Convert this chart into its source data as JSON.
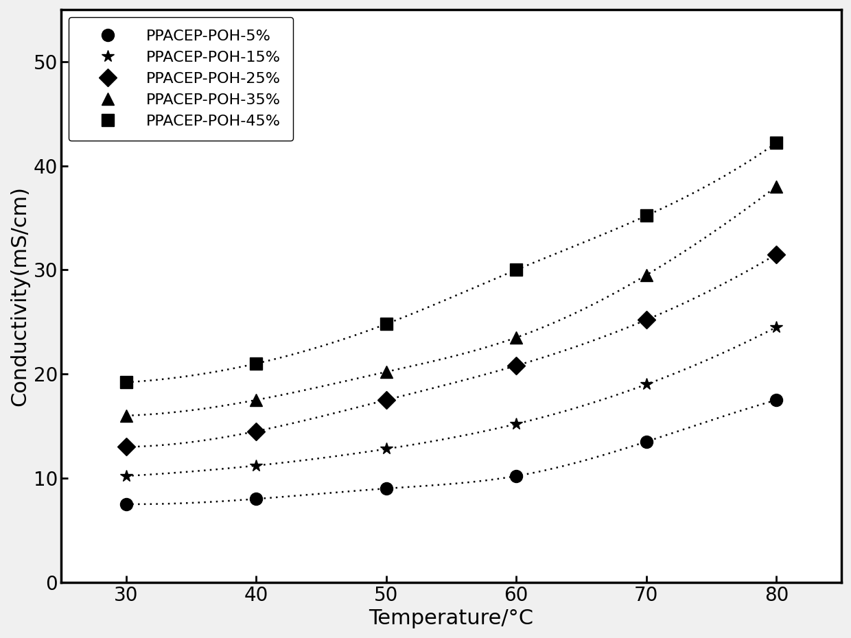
{
  "title": "",
  "xlabel": "Temperature/°C",
  "ylabel": "Conductivity(mS/cm)",
  "x": [
    30,
    40,
    50,
    60,
    70,
    80
  ],
  "series": [
    {
      "label": "PPACEP-POH-5%",
      "marker": "o",
      "color": "#000000",
      "values": [
        7.5,
        8.0,
        9.0,
        10.2,
        13.5,
        17.5
      ]
    },
    {
      "label": "PPACEP-POH-15%",
      "marker": "*",
      "color": "#000000",
      "values": [
        10.2,
        11.2,
        12.8,
        15.2,
        19.0,
        24.5
      ]
    },
    {
      "label": "PPACEP-POH-25%",
      "marker": "D",
      "color": "#000000",
      "values": [
        13.0,
        14.5,
        17.5,
        20.8,
        25.2,
        31.5
      ]
    },
    {
      "label": "PPACEP-POH-35%",
      "marker": "^",
      "color": "#000000",
      "values": [
        16.0,
        17.5,
        20.2,
        23.5,
        29.5,
        38.0
      ]
    },
    {
      "label": "PPACEP-POH-45%",
      "marker": "s",
      "color": "#000000",
      "values": [
        19.2,
        21.0,
        24.8,
        30.0,
        35.2,
        42.2
      ]
    }
  ],
  "xlim": [
    25,
    85
  ],
  "ylim": [
    0,
    55
  ],
  "xticks": [
    30,
    40,
    50,
    60,
    70,
    80
  ],
  "yticks": [
    0,
    10,
    20,
    30,
    40,
    50
  ],
  "legend_loc": "upper left",
  "markersize": 13,
  "linewidth": 1.8,
  "fontsize_axis_label": 22,
  "fontsize_tick": 20,
  "fontsize_legend": 16,
  "background_color": "#f0f0f0",
  "plot_bg_color": "#ffffff"
}
